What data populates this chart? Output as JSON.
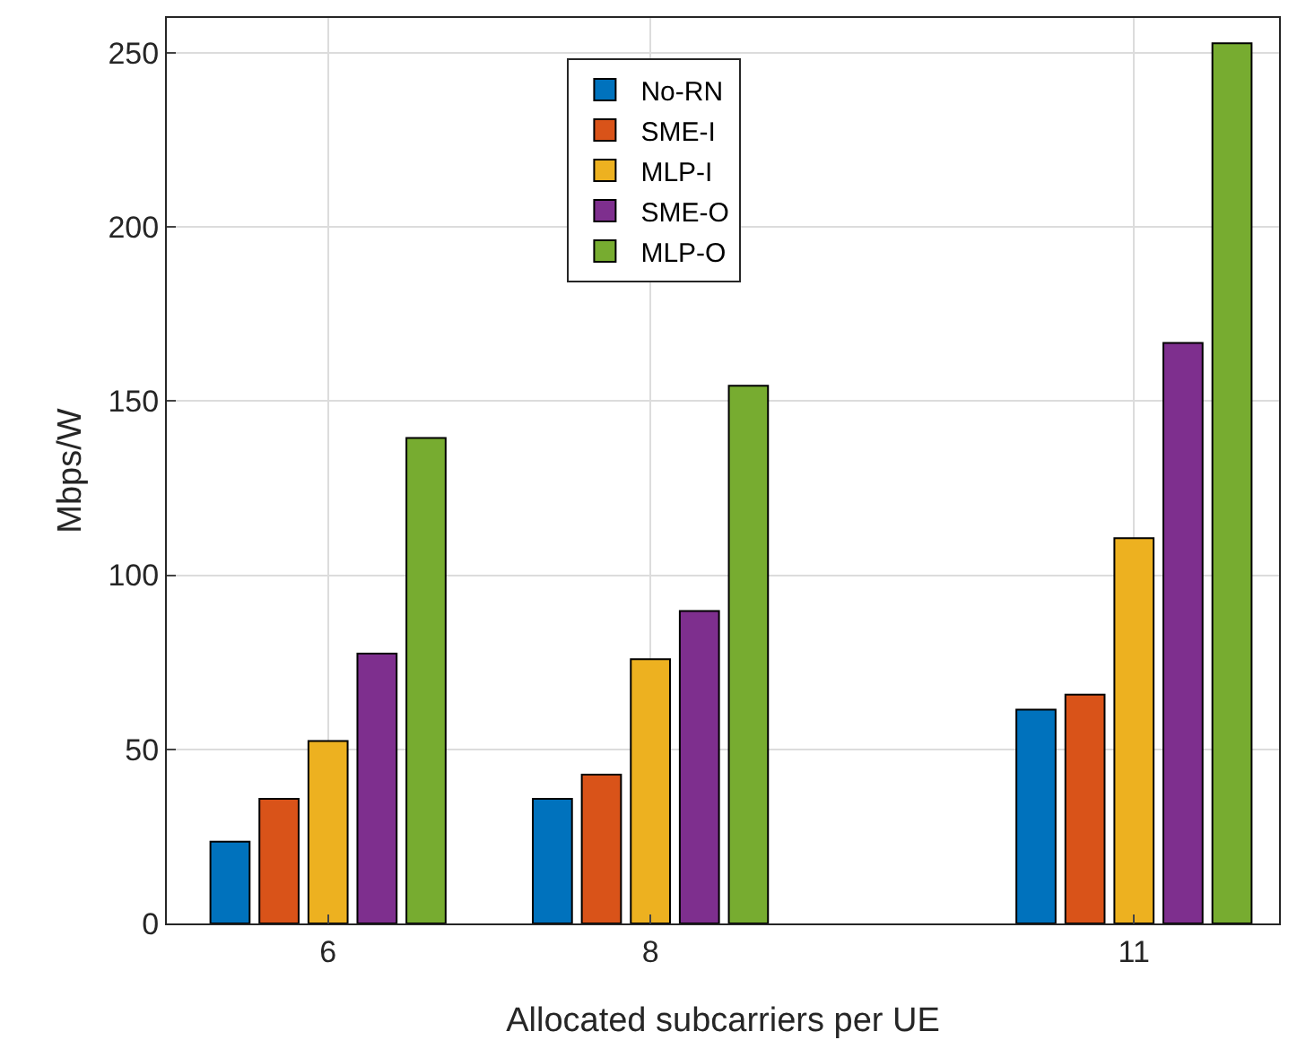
{
  "chart_data": {
    "type": "bar",
    "xlabel": "Allocated subcarriers per UE",
    "ylabel": "Mbps/W",
    "x": [
      6,
      8,
      11
    ],
    "xlim": [
      5,
      11.9
    ],
    "xticks": [
      6,
      8,
      11
    ],
    "ylim": [
      0,
      260
    ],
    "yticks": [
      0,
      50,
      100,
      150,
      200,
      250
    ],
    "series": [
      {
        "name": "No-RN",
        "color": "#0072bd",
        "values": [
          23.5,
          35.8,
          61.4
        ]
      },
      {
        "name": "SME-I",
        "color": "#d95319",
        "values": [
          35.8,
          42.7,
          65.7
        ]
      },
      {
        "name": "MLP-I",
        "color": "#edb120",
        "values": [
          52.4,
          75.9,
          110.6
        ]
      },
      {
        "name": "SME-O",
        "color": "#7e2f8e",
        "values": [
          77.5,
          89.7,
          166.7
        ]
      },
      {
        "name": "MLP-O",
        "color": "#77ac30",
        "values": [
          139.4,
          154.4,
          252.7
        ]
      }
    ],
    "grid": true,
    "legend": "top"
  }
}
